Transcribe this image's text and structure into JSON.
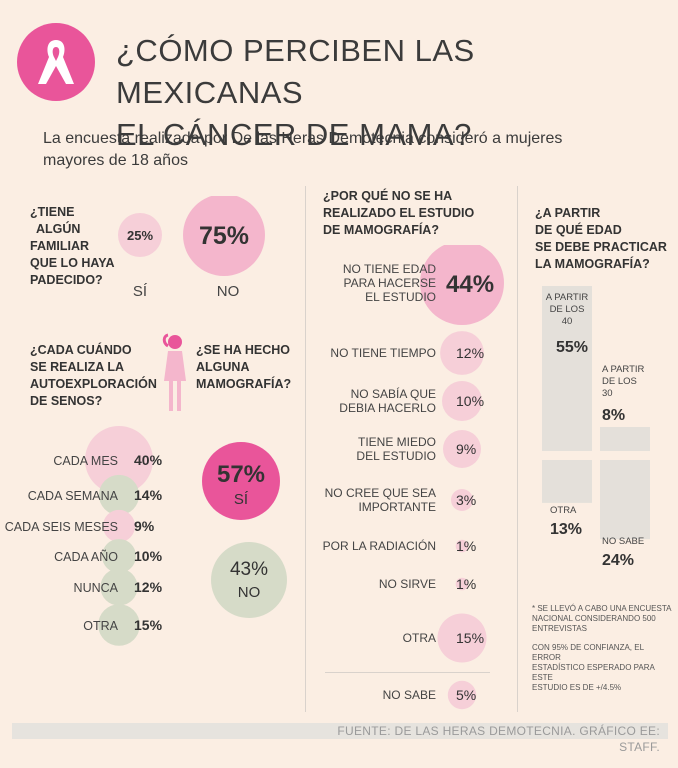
{
  "header": {
    "title_line1": "¿CÓMO PERCIBEN LAS MEXICANAS",
    "title_line2": "EL CÁNCER DE MAMA?",
    "subtitle_line1": "La encuesta realizada por De las Heras Demotecnia consideró  a  mujeres",
    "subtitle_line2": "mayores de 18 años",
    "logo_icon": "pink-ribbon-icon"
  },
  "colors": {
    "background": "#fbeee3",
    "pink_dark": "#e9559a",
    "pink_light": "#f4b6cc",
    "pink_pale": "#f6cfd8",
    "gray": "#d6dbc8",
    "bar_gray": "#e4e0da"
  },
  "familiar": {
    "question": [
      "¿TIENE",
      "ALGÚN",
      "FAMILIAR",
      "QUE LO HAYA",
      "PADECIDO?"
    ],
    "yes_label": "SÍ",
    "yes_value": "25%",
    "no_label": "NO",
    "no_value": "75%"
  },
  "autoexploracion": {
    "question": [
      "¿CADA CUÁNDO",
      "SE REALIZA LA",
      "AUTOEXPLORACIÓN",
      "DE SENOS?"
    ],
    "icon": "woman-figure-icon"
  },
  "mamografia_realizada": {
    "question": [
      "¿SE HA HECHO",
      "ALGUNA",
      "MAMOGRAFÍA?"
    ],
    "yes_value": "57%",
    "yes_label": "SÍ",
    "no_value": "43%",
    "no_label": "NO"
  },
  "por_que": {
    "question": [
      "¿POR QUÉ NO SE HA",
      "REALIZADO EL ESTUDIO",
      "DE MAMOGRAFÍA?"
    ]
  },
  "edad": {
    "question": [
      "¿A PARTIR",
      "DE QUÉ EDAD",
      "SE DEBE PRACTICAR",
      "LA MAMOGRAFÍA?"
    ]
  },
  "chart_data": [
    {
      "type": "bubble",
      "title": "¿CADA CUÁNDO SE REALIZA LA AUTOEXPLORACIÓN DE SENOS?",
      "categories": [
        "CADA MES",
        "CADA SEMANA",
        "CADA SEIS MESES",
        "CADA AÑO",
        "NUNCA",
        "OTRA"
      ],
      "values": [
        40,
        14,
        9,
        10,
        12,
        15
      ],
      "labels": [
        "40%",
        "14%",
        "9%",
        "10%",
        "12%",
        "15%"
      ]
    },
    {
      "type": "bubble",
      "title": "¿POR QUÉ NO SE HA REALIZADO EL ESTUDIO DE MAMOGRAFÍA?",
      "categories": [
        "NO TIENE EDAD PARA HACERSE EL ESTUDIO",
        "NO TIENE TIEMPO",
        "NO SABÍA QUE DEBIA HACERLO",
        "TIENE MIEDO DEL ESTUDIO",
        "NO CREE QUE SEA IMPORTANTE",
        "POR LA RADIACIÓN",
        "NO SIRVE",
        "OTRA",
        "NO SABE"
      ],
      "lines": [
        [
          "NO TIENE EDAD",
          "PARA HACERSE",
          "EL ESTUDIO"
        ],
        [
          "NO TIENE TIEMPO"
        ],
        [
          "NO SABÍA QUE",
          "DEBIA HACERLO"
        ],
        [
          "TIENE MIEDO",
          "DEL ESTUDIO"
        ],
        [
          "NO CREE QUE SEA",
          "IMPORTANTE"
        ],
        [
          "POR LA RADIACIÓN"
        ],
        [
          "NO SIRVE"
        ],
        [
          "OTRA"
        ],
        [
          "NO SABE"
        ]
      ],
      "values": [
        44,
        12,
        10,
        9,
        3,
        1,
        1,
        15,
        5
      ],
      "labels": [
        "44%",
        "12%",
        "10%",
        "9%",
        "3%",
        "1%",
        "1%",
        "15%",
        "5%"
      ]
    },
    {
      "type": "bar",
      "title": "¿A PARTIR DE QUÉ EDAD SE DEBE PRACTICAR LA MAMOGRAFÍA?",
      "categories": [
        "A PARTIR DE LOS 40",
        "A PARTIR DE LOS 30",
        "OTRA",
        "NO SABE"
      ],
      "lines": [
        [
          "A PARTIR",
          "DE LOS",
          "40"
        ],
        [
          "A PARTIR",
          "DE LOS",
          "30"
        ],
        [
          "OTRA"
        ],
        [
          "NO SABE"
        ]
      ],
      "values": [
        55,
        8,
        13,
        24
      ],
      "labels": [
        "55%",
        "8%",
        "13%",
        "24%"
      ]
    }
  ],
  "notes": {
    "note1": [
      "* SE LLEVÓ A CABO UNA ENCUESTA",
      "NACIONAL CONSIDERANDO 500",
      "ENTREVISTAS"
    ],
    "note2": [
      "CON 95% DE CONFIANZA, EL ERROR",
      "ESTADÍSTICO ESPERADO PARA ESTE",
      "ESTUDIO ES DE +/4.5%"
    ]
  },
  "footer": {
    "source": "FUENTE: DE LAS HERAS DEMOTECNIA. GRÁFICO EE: STAFF."
  }
}
